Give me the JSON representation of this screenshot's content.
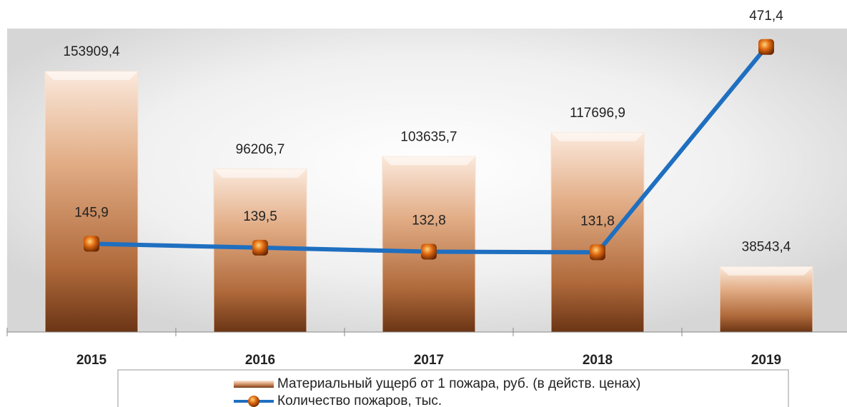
{
  "chart_data": {
    "type": "bar",
    "categories": [
      "2015",
      "2016",
      "2017",
      "2018",
      "2019"
    ],
    "series": [
      {
        "name": "Материальный ущерб от 1 пожара, руб. (в действ. ценах)",
        "type": "bar",
        "color": "#c8875a",
        "values": [
          153909.4,
          96206.7,
          103635.7,
          117696.9,
          38543.4
        ],
        "value_labels": [
          "153909,4",
          "96206,7",
          "103635,7",
          "117696,9",
          "38543,4"
        ]
      },
      {
        "name": "Количество пожаров, тыс.",
        "type": "line",
        "axis": "y2",
        "color": "#1f6fc0",
        "values": [
          145.9,
          139.5,
          132.8,
          131.8,
          471.4
        ],
        "value_labels": [
          "145,9",
          "139,5",
          "132,8",
          "131,8",
          "471,4"
        ]
      }
    ],
    "ylim": [
      0,
      175000
    ],
    "y2lim": [
      0,
      490
    ],
    "legend": "bottom"
  }
}
